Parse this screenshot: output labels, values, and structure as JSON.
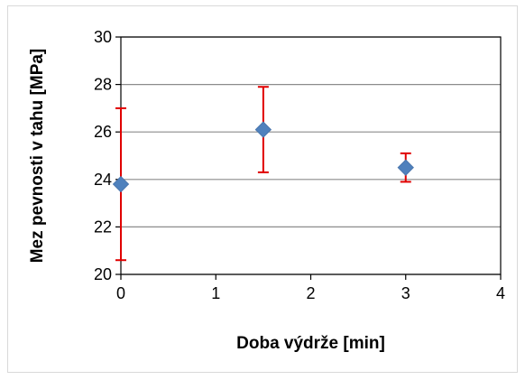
{
  "chart_data": {
    "type": "scatter",
    "title": "",
    "xlabel": "Doba výdrže [min]",
    "ylabel": "Mez pevnosti v tahu [MPa]",
    "xlim": [
      0,
      4
    ],
    "ylim": [
      20,
      30
    ],
    "x_ticks": [
      "0",
      "1",
      "2",
      "3",
      "4"
    ],
    "y_ticks": [
      "20",
      "22",
      "24",
      "26",
      "28",
      "30"
    ],
    "grid": "horizontal",
    "legend": "none",
    "marker_color": "#4f81bd",
    "error_bar_color": "#e00000",
    "series": [
      {
        "x": [
          0,
          1.5,
          3
        ],
        "y": [
          23.8,
          26.1,
          24.5
        ],
        "error_low": [
          20.6,
          24.3,
          23.9
        ],
        "error_high": [
          27.0,
          27.9,
          25.1
        ]
      }
    ]
  }
}
